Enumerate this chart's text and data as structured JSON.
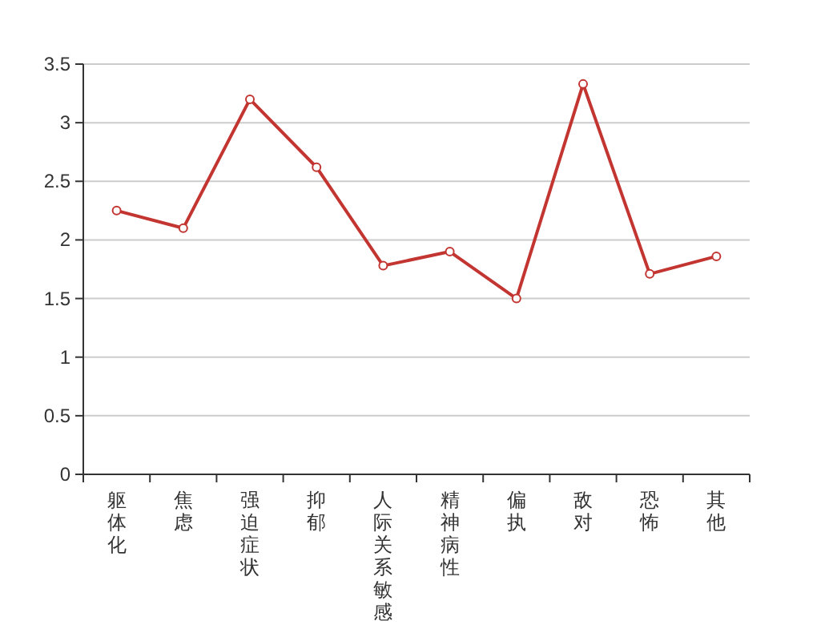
{
  "chart_data": {
    "type": "line",
    "categories": [
      "躯体化",
      "焦虑",
      "强迫症状",
      "抑郁",
      "人际关系敏感",
      "精神病性",
      "偏执",
      "敌对",
      "恐怖",
      "其他"
    ],
    "series": [
      {
        "color": "#c23531",
        "values": [
          2.25,
          2.1,
          3.2,
          2.62,
          1.78,
          1.9,
          1.5,
          3.33,
          1.71,
          1.86
        ]
      }
    ],
    "ylim": [
      0,
      3.5
    ],
    "yticks": [
      0,
      0.5,
      1,
      1.5,
      2,
      2.5,
      3,
      3.5
    ],
    "grid": "y",
    "marker": "circle",
    "line_style": "solid"
  }
}
